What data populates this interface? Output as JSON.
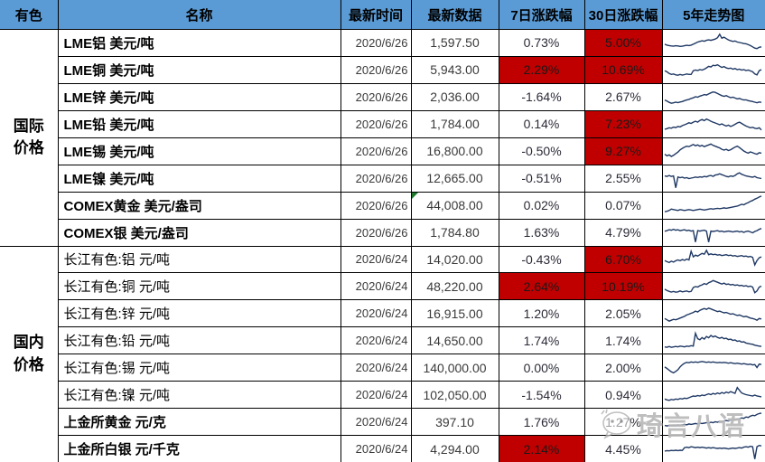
{
  "colors": {
    "header_bg": "#5B9BD5",
    "highlight_red": "#C00000",
    "sparkline": "#1F3864",
    "note_marker_green": "#1F7A2E"
  },
  "watermark": {
    "text": "琦言八语",
    "icon": "wechat-chat-bubble"
  },
  "chart_data": {
    "type": "table",
    "title": "有色金属价格表",
    "columns": [
      {
        "label": "有色"
      },
      {
        "label": "名称"
      },
      {
        "label": "最新时间"
      },
      {
        "label": "最新数据"
      },
      {
        "label": "7日涨跌幅"
      },
      {
        "label": "30日涨跌幅"
      },
      {
        "label": "5年走势图"
      }
    ],
    "sections": [
      {
        "category": "国际价格",
        "rows": [
          {
            "name": "LME铝 美元/吨",
            "bold": true,
            "date": "2020/6/26",
            "value": "1,597.50",
            "pct7": "0.73%",
            "pct7_highlight": false,
            "pct30": "5.00%",
            "pct30_highlight": true,
            "note": false,
            "spark": [
              42,
              38,
              36,
              34,
              33,
              35,
              34,
              32,
              33,
              35,
              37,
              36,
              38,
              42,
              47,
              52,
              55,
              58,
              56,
              60,
              62,
              60,
              63,
              66,
              72,
              88,
              70,
              74,
              68,
              62,
              58,
              55,
              57,
              52,
              50,
              48,
              45,
              44,
              40,
              36,
              30,
              24,
              22,
              28,
              30
            ]
          },
          {
            "name": "LME铜 美元/吨",
            "bold": true,
            "date": "2020/6/26",
            "value": "5,943.00",
            "pct7": "2.29%",
            "pct7_highlight": true,
            "pct30": "10.69%",
            "pct30_highlight": true,
            "note": false,
            "spark": [
              45,
              40,
              32,
              28,
              30,
              26,
              24,
              28,
              25,
              27,
              30,
              28,
              28,
              45,
              48,
              46,
              50,
              48,
              52,
              58,
              65,
              62,
              70,
              68,
              72,
              66,
              60,
              64,
              58,
              55,
              57,
              52,
              55,
              50,
              52,
              48,
              50,
              46,
              48,
              44,
              40,
              30,
              26,
              45,
              50
            ]
          },
          {
            "name": "LME锌 美元/吨",
            "bold": true,
            "date": "2020/6/26",
            "value": "2,036.00",
            "pct7": "-1.64%",
            "pct7_highlight": false,
            "pct30": "2.67%",
            "pct30_highlight": false,
            "note": false,
            "spark": [
              35,
              30,
              24,
              20,
              22,
              25,
              23,
              26,
              28,
              32,
              35,
              38,
              42,
              45,
              50,
              48,
              53,
              56,
              60,
              58,
              63,
              68,
              72,
              70,
              65,
              60,
              55,
              52,
              55,
              50,
              46,
              48,
              44,
              40,
              42,
              38,
              35,
              36,
              32,
              30,
              28,
              25,
              22,
              26,
              24
            ]
          },
          {
            "name": "LME铅 美元/吨",
            "bold": true,
            "date": "2020/6/26",
            "value": "1,784.00",
            "pct7": "0.14%",
            "pct7_highlight": false,
            "pct30": "7.23%",
            "pct30_highlight": true,
            "note": false,
            "spark": [
              25,
              28,
              32,
              30,
              35,
              33,
              38,
              36,
              42,
              46,
              50,
              55,
              52,
              58,
              62,
              58,
              66,
              70,
              65,
              72,
              68,
              62,
              58,
              54,
              50,
              46,
              50,
              44,
              40,
              44,
              38,
              42,
              48,
              54,
              58,
              52,
              46,
              40,
              36,
              32,
              34,
              30,
              28,
              32,
              22
            ]
          },
          {
            "name": "LME锡 美元/吨",
            "bold": true,
            "date": "2020/6/26",
            "value": "16,800.00",
            "pct7": "-0.50%",
            "pct7_highlight": false,
            "pct30": "9.27%",
            "pct30_highlight": true,
            "note": false,
            "spark": [
              35,
              28,
              32,
              25,
              30,
              38,
              45,
              55,
              62,
              68,
              72,
              70,
              75,
              80,
              74,
              78,
              72,
              76,
              70,
              74,
              78,
              82,
              76,
              72,
              68,
              64,
              58,
              54,
              58,
              52,
              56,
              62,
              68,
              72,
              66,
              58,
              50,
              44,
              40,
              46,
              42,
              38,
              35,
              42,
              40
            ]
          },
          {
            "name": "LME镍 美元/吨",
            "bold": true,
            "date": "2020/6/26",
            "value": "12,665.00",
            "pct7": "-0.51%",
            "pct7_highlight": false,
            "pct30": "2.55%",
            "pct30_highlight": false,
            "note": false,
            "spark": [
              60,
              58,
              62,
              58,
              60,
              5,
              55,
              52,
              54,
              50,
              52,
              48,
              50,
              52,
              55,
              53,
              56,
              54,
              58,
              56,
              60,
              62,
              58,
              64,
              66,
              70,
              66,
              62,
              58,
              56,
              60,
              58,
              62,
              70,
              74,
              68,
              64,
              60,
              58,
              56,
              54,
              58,
              52,
              50,
              48
            ]
          },
          {
            "name": "COMEX黄金 美元/盎司",
            "bold": true,
            "date": "2020/6/26",
            "value": "44,008.00",
            "pct7": "0.02%",
            "pct7_highlight": false,
            "pct30": "0.07%",
            "pct30_highlight": false,
            "note": true,
            "spark": [
              20,
              22,
              26,
              32,
              30,
              28,
              26,
              30,
              28,
              26,
              28,
              30,
              28,
              26,
              28,
              30,
              32,
              30,
              28,
              30,
              32,
              34,
              32,
              34,
              36,
              34,
              36,
              38,
              36,
              38,
              40,
              42,
              44,
              46,
              50,
              54,
              52,
              58,
              62,
              68,
              72,
              78,
              82,
              88,
              92
            ]
          },
          {
            "name": "COMEX银 美元/盎司",
            "bold": true,
            "date": "2020/6/26",
            "value": "1,784.80",
            "pct7": "1.63%",
            "pct7_highlight": false,
            "pct30": "4.79%",
            "pct30_highlight": false,
            "note": false,
            "spark": [
              55,
              58,
              62,
              60,
              64,
              60,
              62,
              58,
              60,
              62,
              58,
              60,
              56,
              58,
              5,
              58,
              56,
              58,
              60,
              56,
              5,
              56,
              54,
              56,
              58,
              54,
              56,
              52,
              54,
              56,
              54,
              52,
              54,
              56,
              52,
              54,
              50,
              54,
              56,
              52,
              48,
              54,
              58,
              64,
              68
            ]
          }
        ]
      },
      {
        "category": "国内价格",
        "rows": [
          {
            "name": "长江有色:铝 元/吨",
            "bold": false,
            "date": "2020/6/24",
            "value": "14,020.00",
            "pct7": "-0.43%",
            "pct7_highlight": false,
            "pct30": "6.70%",
            "pct30_highlight": true,
            "note": false,
            "spark": [
              45,
              40,
              36,
              42,
              38,
              44,
              48,
              44,
              50,
              46,
              52,
              48,
              88,
              62,
              70,
              66,
              72,
              78,
              74,
              92,
              72,
              76,
              72,
              74,
              70,
              72,
              68,
              70,
              72,
              68,
              70,
              66,
              68,
              64,
              66,
              68,
              64,
              66,
              62,
              64,
              60,
              25,
              45,
              58,
              62
            ]
          },
          {
            "name": "长江有色:铜 元/吨",
            "bold": false,
            "date": "2020/6/24",
            "value": "48,220.00",
            "pct7": "2.64%",
            "pct7_highlight": true,
            "pct30": "10.19%",
            "pct30_highlight": true,
            "note": false,
            "spark": [
              38,
              32,
              28,
              25,
              28,
              24,
              26,
              30,
              26,
              28,
              30,
              26,
              28,
              46,
              50,
              48,
              54,
              58,
              64,
              60,
              68,
              72,
              78,
              74,
              70,
              66,
              62,
              66,
              60,
              62,
              58,
              60,
              56,
              58,
              54,
              56,
              52,
              54,
              50,
              52,
              48,
              22,
              30,
              48,
              52
            ]
          },
          {
            "name": "长江有色:锌 元/吨",
            "bold": false,
            "date": "2020/6/24",
            "value": "16,915.00",
            "pct7": "1.20%",
            "pct7_highlight": false,
            "pct30": "2.05%",
            "pct30_highlight": false,
            "note": false,
            "spark": [
              28,
              22,
              16,
              20,
              24,
              22,
              26,
              30,
              34,
              38,
              44,
              48,
              52,
              56,
              62,
              58,
              66,
              70,
              74,
              70,
              76,
              72,
              68,
              64,
              60,
              62,
              58,
              54,
              56,
              52,
              48,
              50,
              46,
              42,
              44,
              40,
              36,
              38,
              34,
              30,
              28,
              25,
              20,
              28,
              26
            ]
          },
          {
            "name": "长江有色:铅 元/吨",
            "bold": false,
            "date": "2020/6/24",
            "value": "14,650.00",
            "pct7": "1.74%",
            "pct7_highlight": false,
            "pct30": "1.74%",
            "pct30_highlight": false,
            "note": false,
            "spark": [
              22,
              20,
              24,
              20,
              22,
              24,
              22,
              26,
              24,
              22,
              26,
              24,
              28,
              26,
              85,
              60,
              55,
              65,
              58,
              70,
              64,
              75,
              68,
              72,
              66,
              62,
              66,
              60,
              62,
              56,
              58,
              52,
              54,
              48,
              50,
              44,
              46,
              40,
              38,
              36,
              34,
              30,
              28,
              26,
              24
            ]
          },
          {
            "name": "长江有色:锡 元/吨",
            "bold": false,
            "date": "2020/6/24",
            "value": "140,000.00",
            "pct7": "0.00%",
            "pct7_highlight": false,
            "pct30": "2.00%",
            "pct30_highlight": false,
            "note": false,
            "spark": [
              55,
              48,
              40,
              32,
              28,
              34,
              42,
              55,
              65,
              72,
              76,
              74,
              78,
              76,
              78,
              76,
              78,
              80,
              78,
              76,
              78,
              76,
              78,
              76,
              74,
              76,
              74,
              76,
              74,
              72,
              74,
              72,
              70,
              72,
              70,
              68,
              70,
              68,
              66,
              68,
              64,
              66,
              52,
              68,
              66
            ]
          },
          {
            "name": "长江有色:镍 元/吨",
            "bold": false,
            "date": "2020/6/24",
            "value": "102,050.00",
            "pct7": "-1.54%",
            "pct7_highlight": false,
            "pct30": "0.94%",
            "pct30_highlight": false,
            "note": false,
            "spark": [
              32,
              28,
              26,
              30,
              28,
              32,
              30,
              34,
              32,
              36,
              34,
              38,
              42,
              46,
              44,
              48,
              46,
              50,
              48,
              52,
              56,
              52,
              58,
              54,
              60,
              56,
              62,
              58,
              64,
              60,
              66,
              62,
              58,
              85,
              72,
              60,
              56,
              52,
              50,
              48,
              46,
              50,
              46,
              44,
              42
            ]
          },
          {
            "name": "上金所黄金 元/克",
            "bold": true,
            "date": "2020/6/24",
            "value": "397.10",
            "pct7": "1.76%",
            "pct7_highlight": false,
            "pct30": "1.27%",
            "pct30_highlight": false,
            "note": false,
            "spark": [
              35,
              33,
              35,
              34,
              36,
              35,
              37,
              36,
              38,
              40,
              38,
              42,
              40,
              42,
              44,
              42,
              46,
              44,
              46,
              48,
              46,
              50,
              48,
              52,
              50,
              54,
              52,
              56,
              58,
              56,
              60,
              62,
              60,
              64,
              66,
              70,
              68,
              74,
              72,
              78,
              82,
              80,
              86,
              90,
              92
            ]
          },
          {
            "name": "上金所白银 元/千克",
            "bold": true,
            "date": "2020/6/24",
            "value": "4,294.00",
            "pct7": "2.14%",
            "pct7_highlight": true,
            "pct30": "4.45%",
            "pct30_highlight": false,
            "note": false,
            "spark": [
              42,
              44,
              43,
              45,
              44,
              46,
              44,
              46,
              45,
              58,
              60,
              58,
              62,
              60,
              58,
              60,
              58,
              60,
              58,
              56,
              58,
              56,
              58,
              56,
              54,
              56,
              54,
              56,
              54,
              52,
              54,
              56,
              54,
              56,
              58,
              56,
              60,
              62,
              60,
              64,
              62,
              5,
              62,
              68,
              66
            ]
          }
        ]
      }
    ]
  }
}
